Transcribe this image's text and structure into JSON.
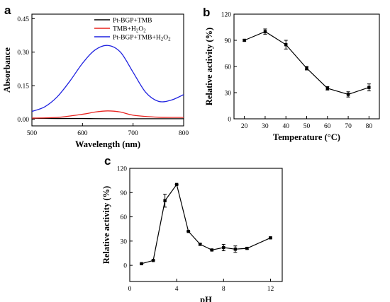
{
  "chart_data": [
    {
      "panel": "a",
      "type": "line",
      "xlabel": "Wavelength (nm)",
      "ylabel": "Absorbance",
      "xlim": [
        500,
        800
      ],
      "ylim": [
        -0.03,
        0.47
      ],
      "x_ticks": [
        500,
        600,
        700,
        800
      ],
      "x_tick_labels": [
        "500",
        "600",
        "700",
        "800"
      ],
      "y_ticks": [
        0.0,
        0.15,
        0.3,
        0.45
      ],
      "y_tick_labels": [
        "0.00",
        "0.15",
        "0.30",
        "0.45"
      ],
      "legend_position": "top-right",
      "series": [
        {
          "name": "Pt-BGP+TMB",
          "color": "#000000",
          "x": [
            500,
            550,
            600,
            650,
            700,
            750,
            800
          ],
          "y": [
            0.004,
            0.003,
            0.003,
            0.002,
            0.002,
            0.002,
            0.002
          ]
        },
        {
          "name": "TMB+H2O2",
          "color": "#e8231f",
          "x": [
            500,
            550,
            600,
            625,
            650,
            675,
            700,
            750,
            800
          ],
          "y": [
            0.005,
            0.008,
            0.022,
            0.032,
            0.037,
            0.032,
            0.018,
            0.009,
            0.008
          ]
        },
        {
          "name": "Pt-BGP+TMB+H2O2",
          "color": "#1f22e0",
          "x": [
            500,
            525,
            550,
            575,
            600,
            625,
            650,
            675,
            700,
            725,
            750,
            775,
            800
          ],
          "y": [
            0.035,
            0.055,
            0.1,
            0.17,
            0.25,
            0.31,
            0.33,
            0.3,
            0.21,
            0.12,
            0.08,
            0.085,
            0.11
          ]
        }
      ]
    },
    {
      "panel": "b",
      "type": "line",
      "xlabel": "Temperature (°C)",
      "ylabel": "Relative activity (%)",
      "xlim": [
        15,
        85
      ],
      "ylim": [
        0,
        120
      ],
      "x_ticks": [
        20,
        30,
        40,
        50,
        60,
        70,
        80
      ],
      "x_tick_labels": [
        "20",
        "30",
        "40",
        "50",
        "60",
        "70",
        "80"
      ],
      "y_ticks": [
        0,
        30,
        60,
        90,
        120
      ],
      "y_tick_labels": [
        "0",
        "30",
        "60",
        "90",
        "120"
      ],
      "series": [
        {
          "color": "#000000",
          "x": [
            20,
            30,
            40,
            50,
            60,
            70,
            80
          ],
          "y": [
            90,
            100,
            85,
            58,
            35,
            28,
            36
          ],
          "error": [
            1,
            3,
            5,
            2,
            2,
            3,
            4
          ]
        }
      ]
    },
    {
      "panel": "c",
      "type": "line",
      "xlabel": "pH",
      "ylabel": "Relative activity (%)",
      "xlim": [
        0,
        13
      ],
      "ylim": [
        -20,
        120
      ],
      "x_ticks": [
        0,
        4,
        8,
        12
      ],
      "x_tick_labels": [
        "0",
        "4",
        "8",
        "12"
      ],
      "y_ticks": [
        0,
        30,
        60,
        90,
        120
      ],
      "y_tick_labels": [
        "0",
        "30",
        "60",
        "90",
        "120"
      ],
      "series": [
        {
          "color": "#000000",
          "x": [
            1,
            2,
            3,
            4,
            5,
            6,
            7,
            8,
            9,
            10,
            12
          ],
          "y": [
            2,
            6,
            80,
            100,
            42,
            26,
            19,
            22,
            20,
            21,
            34
          ],
          "error": [
            0.5,
            0.5,
            8,
            0.5,
            0.5,
            1,
            0.5,
            4,
            4,
            1,
            1
          ]
        }
      ]
    }
  ]
}
